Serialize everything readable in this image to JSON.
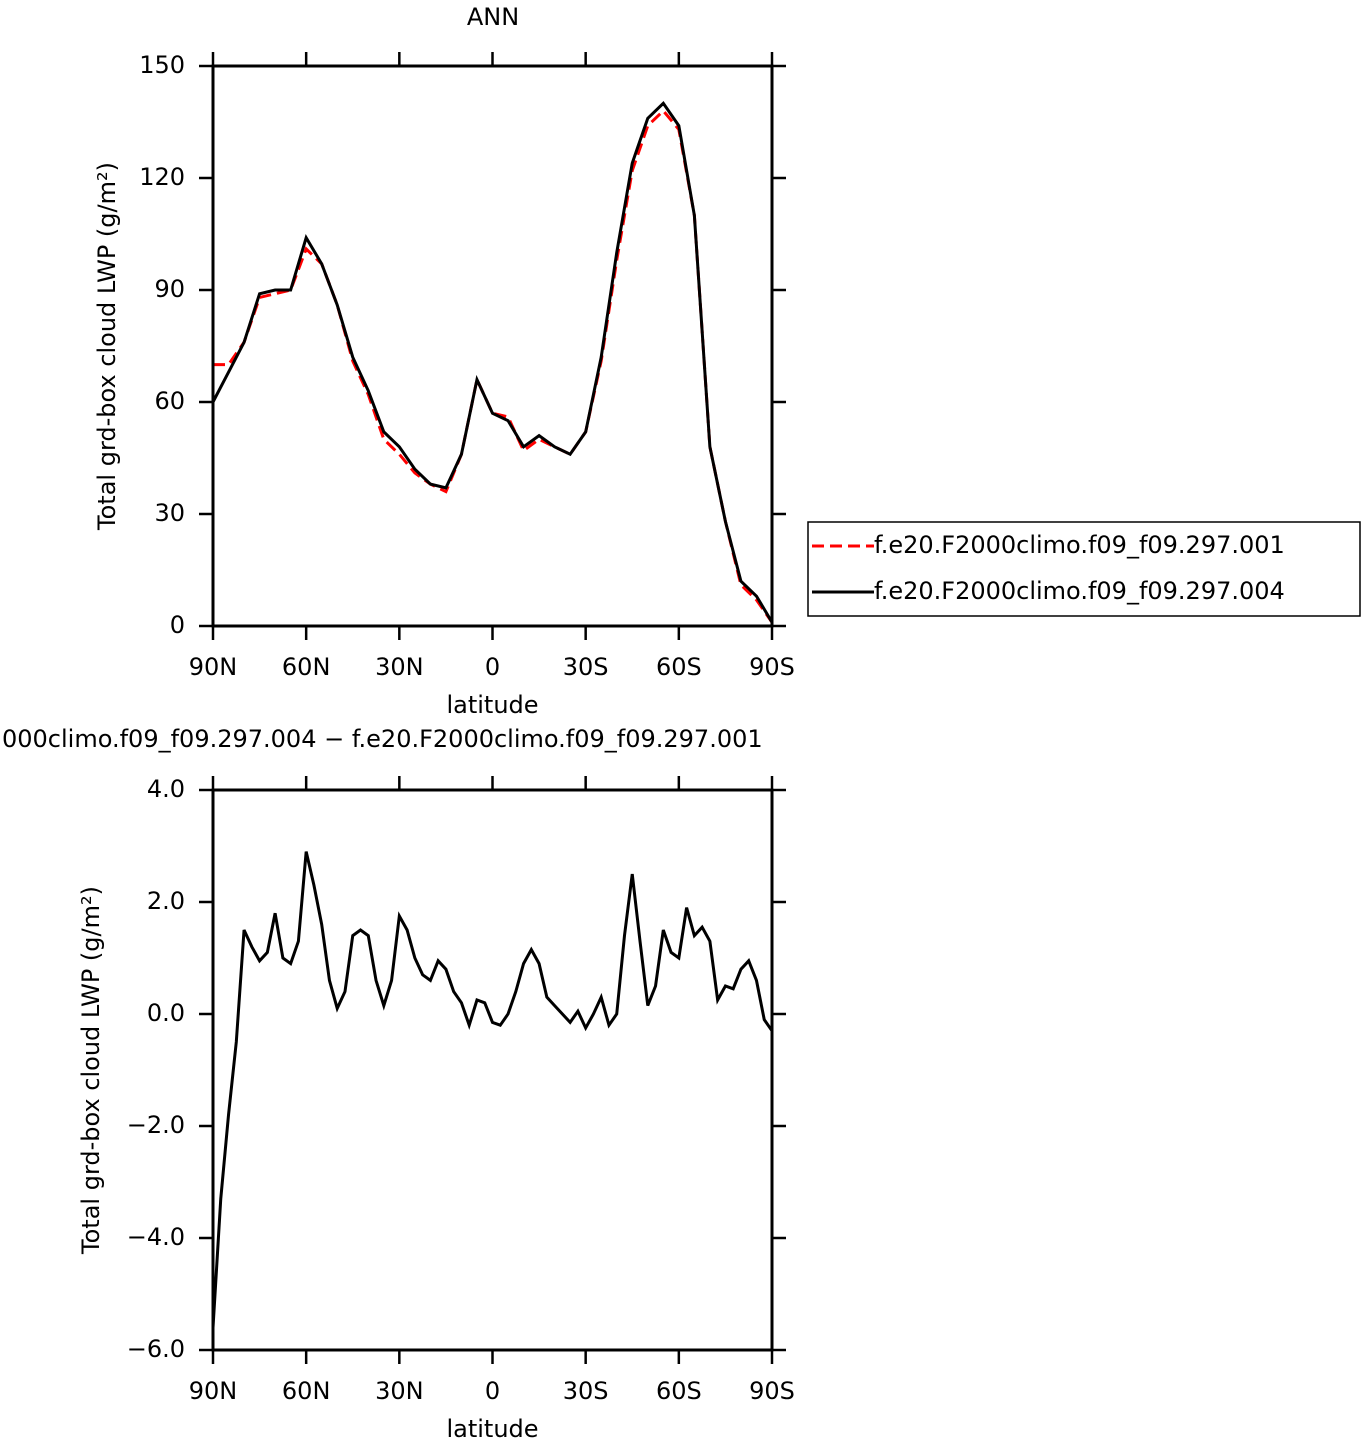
{
  "chart_data": [
    {
      "type": "line",
      "title": "ANN",
      "ylabel": "Total grd-box cloud LWP (g/m²)",
      "xlabel": "latitude",
      "x": [
        90,
        85,
        80,
        75,
        70,
        65,
        60,
        55,
        50,
        45,
        40,
        35,
        30,
        25,
        20,
        15,
        10,
        5,
        0,
        -5,
        -10,
        -15,
        -20,
        -25,
        -30,
        -35,
        -40,
        -45,
        -50,
        -55,
        -60,
        -65,
        -70,
        -75,
        -80,
        -85,
        -90
      ],
      "series": [
        {
          "name": "f.e20.F2000climo.f09_f09.297.001",
          "color": "#ff0000",
          "linestyle": "dashed",
          "values": [
            70,
            70,
            76,
            88,
            89,
            90,
            101,
            97,
            86,
            71,
            62,
            50,
            46,
            41,
            38,
            36,
            46,
            66,
            57,
            56,
            47,
            50,
            48,
            46,
            52,
            71,
            98,
            122,
            134,
            138,
            133,
            110,
            48,
            28,
            11,
            7,
            1
          ]
        },
        {
          "name": "f.e20.F2000climo.f09_f09.297.004",
          "color": "#000000",
          "linestyle": "solid",
          "values": [
            60,
            68,
            76,
            89,
            90,
            90,
            104,
            97,
            86,
            72,
            63,
            52,
            48,
            42,
            38,
            37,
            46,
            66,
            57,
            55,
            48,
            51,
            48,
            46,
            52,
            72,
            100,
            124,
            136,
            140,
            134,
            110,
            48,
            28,
            12,
            8,
            1
          ]
        }
      ],
      "xlim": [
        90,
        -90
      ],
      "xticks": [
        {
          "value": 90,
          "label": "90N"
        },
        {
          "value": 60,
          "label": "60N"
        },
        {
          "value": 30,
          "label": "30N"
        },
        0,
        {
          "value": -30,
          "label": "30S"
        },
        {
          "value": -60,
          "label": "60S"
        },
        {
          "value": -90,
          "label": "90S"
        }
      ],
      "ylim": [
        0,
        150
      ],
      "yticks": [
        0,
        30,
        60,
        90,
        120,
        150
      ],
      "legend": "right"
    },
    {
      "type": "line",
      "title": "000climo.f09_f09.297.004 − f.e20.F2000climo.f09_f09.297.001",
      "ylabel": "Total grd-box cloud LWP (g/m²)",
      "xlabel": "latitude",
      "x": [
        90,
        87.5,
        85,
        82.5,
        80,
        77.5,
        75,
        72.5,
        70,
        67.5,
        65,
        62.5,
        60,
        57.5,
        55,
        52.5,
        50,
        47.5,
        45,
        42.5,
        40,
        37.5,
        35,
        32.5,
        30,
        27.5,
        25,
        22.5,
        20,
        17.5,
        15,
        12.5,
        10,
        7.5,
        5,
        2.5,
        0,
        -2.5,
        -5,
        -7.5,
        -10,
        -12.5,
        -15,
        -17.5,
        -20,
        -22.5,
        -25,
        -27.5,
        -30,
        -32.5,
        -35,
        -37.5,
        -40,
        -42.5,
        -45,
        -47.5,
        -50,
        -52.5,
        -55,
        -57.5,
        -60,
        -62.5,
        -65,
        -67.5,
        -70,
        -72.5,
        -75,
        -77.5,
        -80,
        -82.5,
        -85,
        -87.5,
        -90
      ],
      "series": [
        {
          "color": "#000000",
          "linestyle": "solid",
          "values": [
            -5.6,
            -3.3,
            -1.8,
            -0.5,
            1.5,
            1.2,
            0.95,
            1.1,
            1.8,
            1.0,
            0.9,
            1.3,
            2.9,
            2.3,
            1.6,
            0.6,
            0.1,
            0.4,
            1.4,
            1.5,
            1.4,
            0.6,
            0.15,
            0.6,
            1.75,
            1.5,
            1.0,
            0.7,
            0.6,
            0.95,
            0.8,
            0.4,
            0.2,
            -0.2,
            0.25,
            0.2,
            -0.15,
            -0.2,
            0.0,
            0.4,
            0.9,
            1.15,
            0.9,
            0.3,
            0.15,
            0.0,
            -0.15,
            0.05,
            -0.25,
            0.0,
            0.3,
            -0.2,
            0.0,
            1.4,
            2.5,
            1.3,
            0.15,
            0.5,
            1.5,
            1.1,
            1.0,
            1.9,
            1.4,
            1.55,
            1.3,
            0.25,
            0.5,
            0.45,
            0.8,
            0.95,
            0.6,
            -0.1,
            -0.3
          ]
        }
      ],
      "xlim": [
        90,
        -90
      ],
      "xticks": [
        {
          "value": 90,
          "label": "90N"
        },
        {
          "value": 60,
          "label": "60N"
        },
        {
          "value": 30,
          "label": "30N"
        },
        0,
        {
          "value": -30,
          "label": "30S"
        },
        {
          "value": -60,
          "label": "60S"
        },
        {
          "value": -90,
          "label": "90S"
        }
      ],
      "ylim": [
        -6,
        4
      ],
      "yticks": [
        {
          "value": -6,
          "label": "−6.0"
        },
        {
          "value": -4,
          "label": "−4.0"
        },
        {
          "value": -2,
          "label": "−2.0"
        },
        {
          "value": 0,
          "label": "0.0"
        },
        {
          "value": 2,
          "label": "2.0"
        },
        {
          "value": 4,
          "label": "4.0"
        }
      ]
    }
  ]
}
